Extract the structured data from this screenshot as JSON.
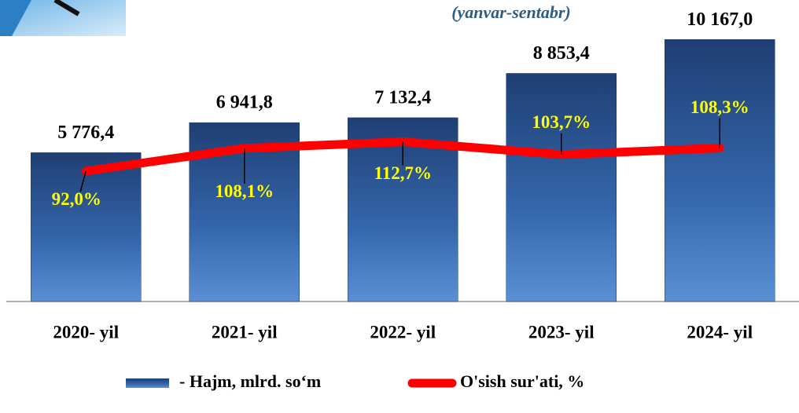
{
  "chart_data": {
    "type": "bar",
    "subtitle": "(yanvar-sentabr)",
    "categories": [
      "2020- yil",
      "2021- yil",
      "2022- yil",
      "2023- yil",
      "2024- yil"
    ],
    "ylim": [
      0,
      11000
    ],
    "y2lim": [
      0,
      200
    ],
    "series": [
      {
        "name": "- Hajm, mlrd. so‘m",
        "type": "bar",
        "color": "#2f5f9e",
        "values": [
          5776.4,
          6941.8,
          7132.4,
          8853.4,
          10167.0
        ],
        "value_labels": [
          "5 776,4",
          "6 941,8",
          "7 132,4",
          "8 853,4",
          "10 167,0"
        ]
      },
      {
        "name": "O'sish sur'ati, %",
        "type": "line",
        "axis": "y2",
        "color": "#ff0000",
        "values": [
          92.0,
          108.1,
          112.7,
          103.7,
          108.3
        ],
        "value_labels": [
          "92,0%",
          "108,1%",
          "112,7%",
          "103,7%",
          "108,3%"
        ]
      }
    ]
  }
}
